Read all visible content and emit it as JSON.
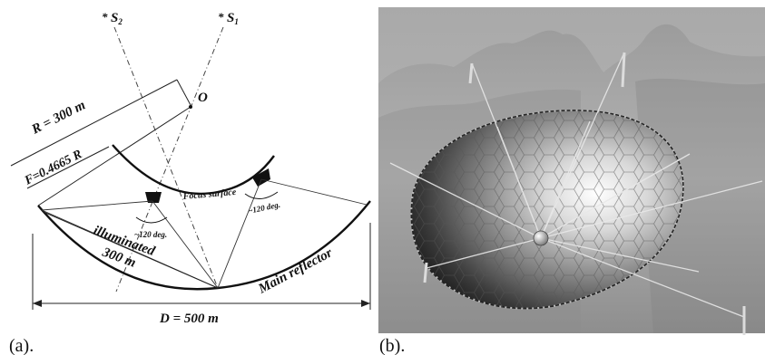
{
  "panel_a": {
    "caption": "(a).",
    "labels": {
      "s2": "S",
      "s2_sub": "2",
      "s1": "S",
      "s1_sub": "1",
      "star": "*",
      "origin": "O",
      "radius": "R = 300  m",
      "focal": "F=0.4665 R",
      "focus_surface": "Focus surface",
      "angle_left": "~120 deg.",
      "angle_right": "~120 deg.",
      "illuminated": "illuminated",
      "aperture": "300 m",
      "main_reflector": "Main reflector",
      "diameter": "D = 500 m"
    }
  },
  "panel_b": {
    "caption": "(b)."
  }
}
